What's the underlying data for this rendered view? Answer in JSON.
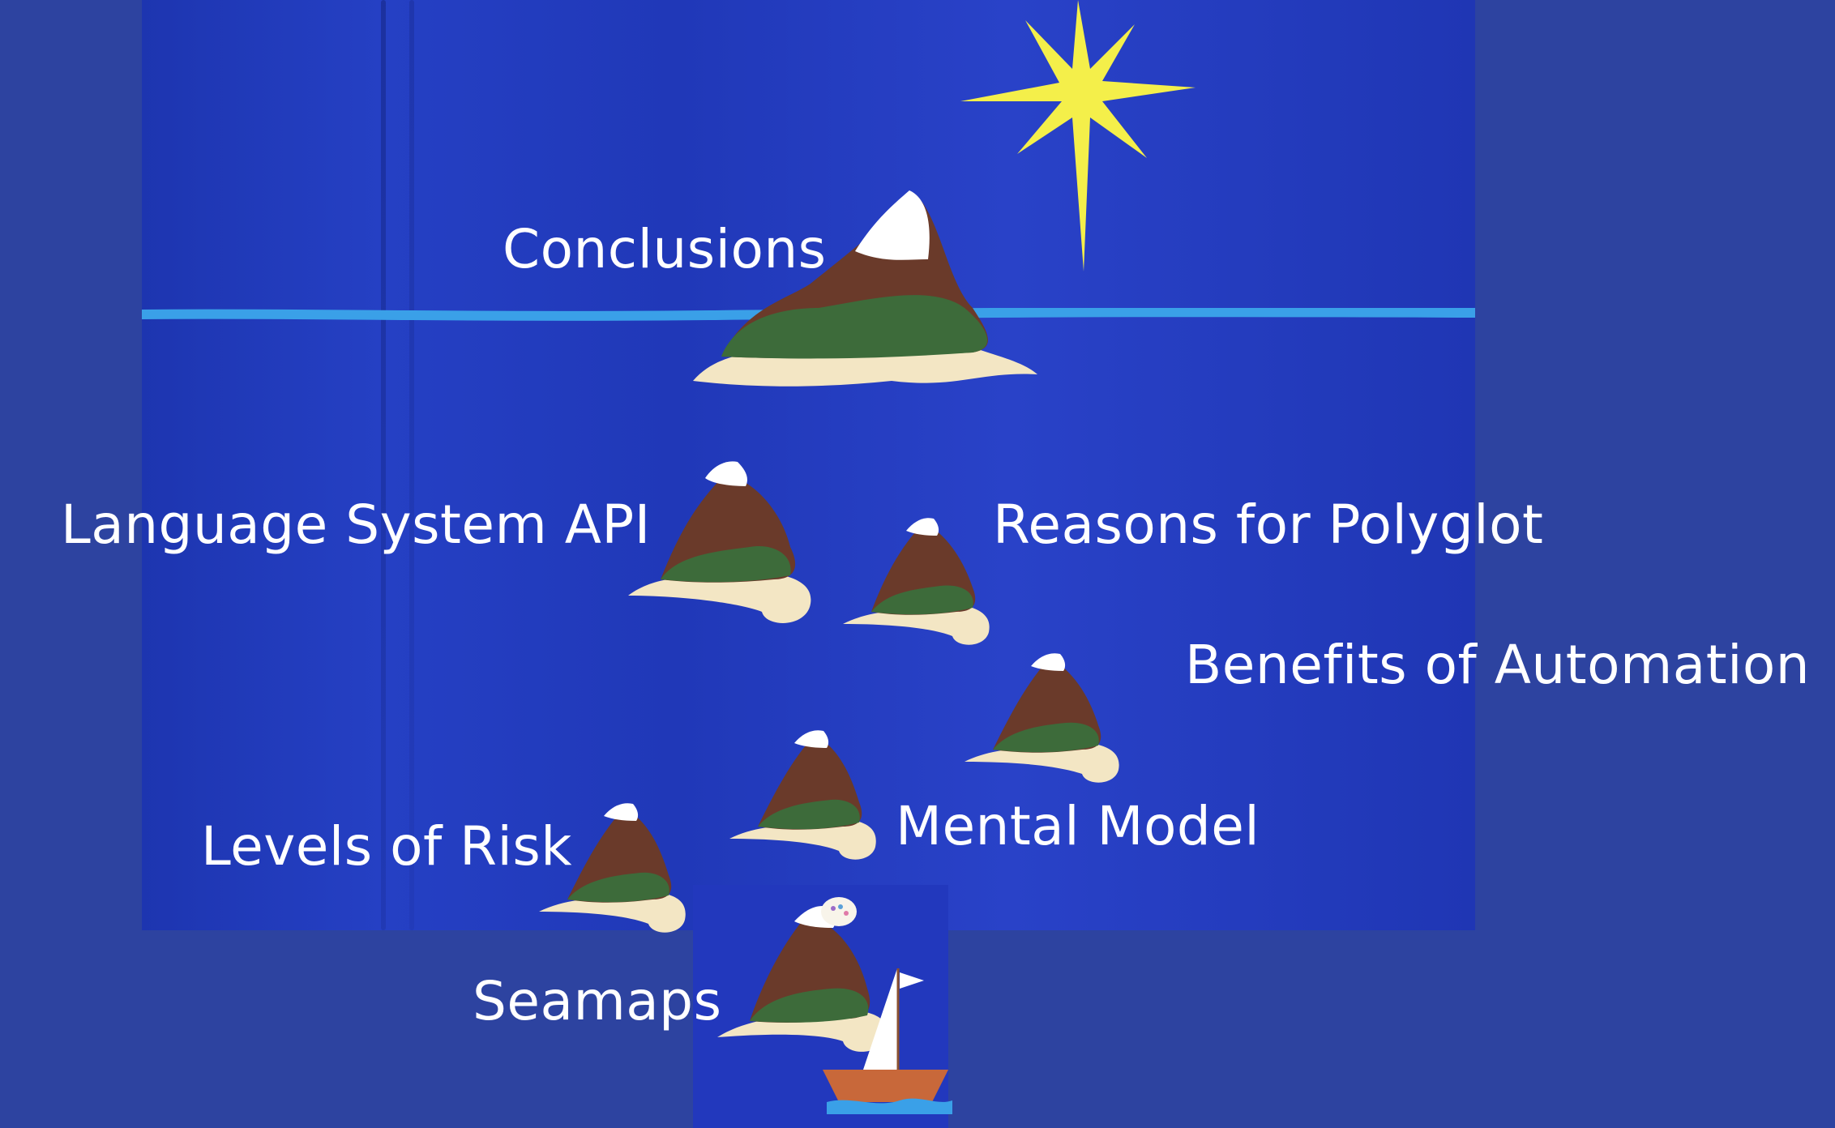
{
  "topics": {
    "conclusions": "Conclusions",
    "language_system_api": "Language System API",
    "reasons_for_polyglot": "Reasons for Polyglot",
    "benefits_of_automation": "Benefits of Automation",
    "mental_model": "Mental Model",
    "levels_of_risk": "Levels of Risk",
    "seamaps": "Seamaps"
  },
  "colors": {
    "background": "#2d43a0",
    "felt": "#2540c4",
    "horizon": "#3aa0e8",
    "star": "#f4ef4a",
    "mountain": "#6a3a2a",
    "forest": "#3d6b3a",
    "sand": "#f3e6c4",
    "snow": "#ffffff",
    "boat_hull": "#c8683a",
    "sail": "#ffffff",
    "label_text": "#ffffff"
  },
  "icons": [
    "star-icon",
    "island-icon",
    "sailboat-icon"
  ]
}
